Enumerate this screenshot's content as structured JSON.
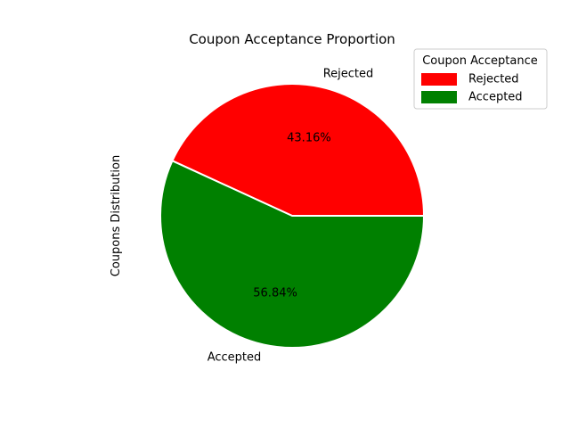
{
  "chart_data": {
    "type": "pie",
    "title": "Coupon Acceptance Proportion",
    "ylabel": "Coupons Distribution",
    "slices": [
      {
        "label": "Rejected",
        "percent": 43.16,
        "percent_label": "43.16%",
        "color": "#ff0000"
      },
      {
        "label": "Accepted",
        "percent": 56.84,
        "percent_label": "56.84%",
        "color": "#008000"
      }
    ],
    "start_angle_deg": 0,
    "direction": "counterclockwise",
    "edge_color": "#ffffff",
    "legend": {
      "title": "Coupon Acceptance",
      "placement": "upper-right",
      "entries": [
        "Rejected",
        "Accepted"
      ]
    }
  }
}
